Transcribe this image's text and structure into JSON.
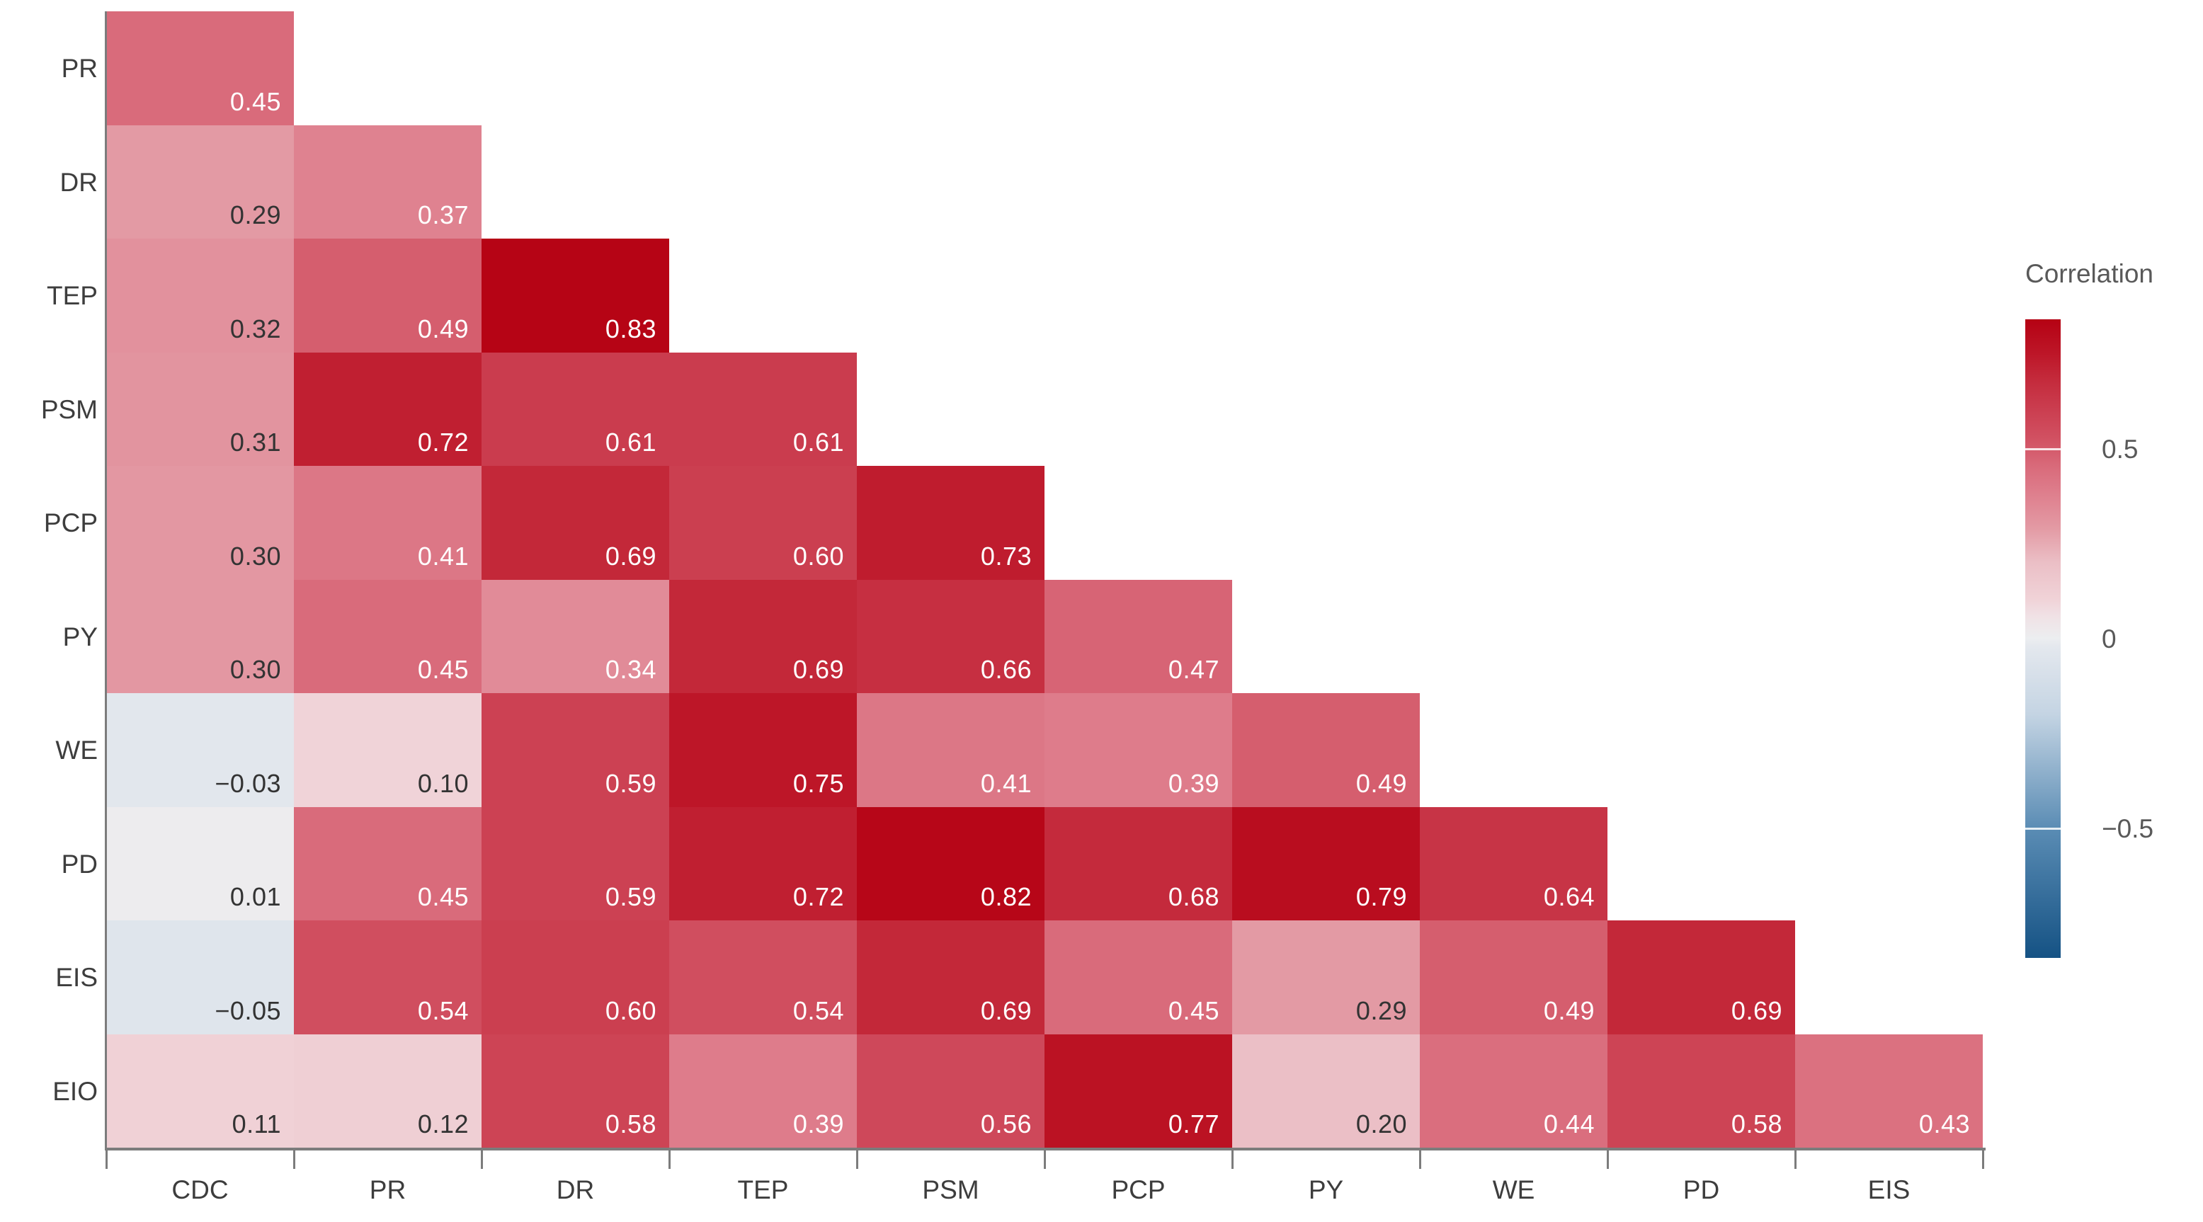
{
  "chart_data": {
    "type": "heatmap",
    "subtype": "lower-triangular-correlation-matrix",
    "row_labels": [
      "PR",
      "DR",
      "TEP",
      "PSM",
      "PCP",
      "PY",
      "WE",
      "PD",
      "EIS",
      "EIO"
    ],
    "col_labels": [
      "CDC",
      "PR",
      "DR",
      "TEP",
      "PSM",
      "PCP",
      "PY",
      "WE",
      "PD",
      "EIS"
    ],
    "matrix": [
      [
        0.45
      ],
      [
        0.29,
        0.37
      ],
      [
        0.32,
        0.49,
        0.83
      ],
      [
        0.31,
        0.72,
        0.61,
        0.61
      ],
      [
        0.3,
        0.41,
        0.69,
        0.6,
        0.73
      ],
      [
        0.3,
        0.45,
        0.34,
        0.69,
        0.66,
        0.47
      ],
      [
        -0.03,
        0.1,
        0.59,
        0.75,
        0.41,
        0.39,
        0.49
      ],
      [
        0.01,
        0.45,
        0.59,
        0.72,
        0.82,
        0.68,
        0.79,
        0.64
      ],
      [
        -0.05,
        0.54,
        0.6,
        0.54,
        0.69,
        0.45,
        0.29,
        0.49,
        0.69
      ],
      [
        0.11,
        0.12,
        0.58,
        0.39,
        0.56,
        0.77,
        0.2,
        0.44,
        0.58,
        0.43
      ]
    ],
    "legend": {
      "title": "Correlation",
      "tick_labels": [
        "0.5",
        "0",
        "−0.5"
      ],
      "tick_values": [
        0.5,
        0,
        -0.5
      ],
      "vmax": 0.84,
      "vmin": -0.84,
      "position": "right"
    },
    "colors": {
      "colormap_stops": [
        [
          -0.84,
          "#155284"
        ],
        [
          -0.5,
          "#5a8cb4"
        ],
        [
          -0.2,
          "#c4d4e3"
        ],
        [
          -0.02,
          "#e4e8ee"
        ],
        [
          0.0,
          "#eceef0"
        ],
        [
          0.06,
          "#f0e1e5"
        ],
        [
          0.1,
          "#f0d3d8"
        ],
        [
          0.2,
          "#ebbfc6"
        ],
        [
          0.29,
          "#e39aa4"
        ],
        [
          0.37,
          "#df8290"
        ],
        [
          0.45,
          "#d96b7b"
        ],
        [
          0.53,
          "#d15061"
        ],
        [
          0.61,
          "#ca3c4e"
        ],
        [
          0.69,
          "#c32839"
        ],
        [
          0.75,
          "#bd1628"
        ],
        [
          0.84,
          "#b50213"
        ]
      ],
      "cell_text_light": "#ffffff",
      "cell_text_dark": "#333333",
      "light_text_threshold": 0.33,
      "axis_line": "#7c7c7c",
      "axis_label": "#3d3d3d",
      "legend_text": "#595959"
    },
    "grid": false,
    "xlabel": "",
    "ylabel": ""
  }
}
